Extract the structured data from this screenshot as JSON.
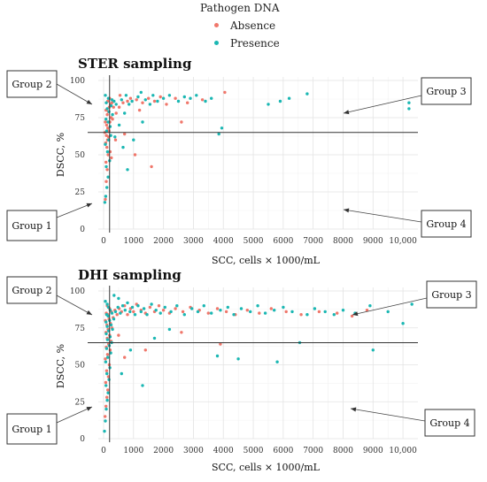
{
  "legend": {
    "title": "Pathogen DNA",
    "items": [
      {
        "label": "Absence",
        "color": "#f0776b"
      },
      {
        "label": "Presence",
        "color": "#1bb7b3"
      }
    ]
  },
  "group_labels": [
    "Group 1",
    "Group 2",
    "Group 3",
    "Group 4"
  ],
  "chart_data": [
    {
      "type": "scatter",
      "title": "STER sampling",
      "xlabel": "SCC, cells × 1000/mL",
      "ylabel": "DSCC, %",
      "xlim": [
        0,
        10500
      ],
      "ylim": [
        0,
        100
      ],
      "xticks": [
        "0",
        "1000",
        "2000",
        "3000",
        "4000",
        "5000",
        "6000",
        "7000",
        "8000",
        "9000",
        "10,000"
      ],
      "yticks": [
        "0",
        "25",
        "50",
        "75",
        "100"
      ],
      "thresholds": {
        "x": 200,
        "y": 65
      },
      "grid": true,
      "legend": "top",
      "series": [
        {
          "name": "Absence",
          "color": "#f0776b",
          "points": [
            [
              60,
              20
            ],
            [
              90,
              32
            ],
            [
              120,
              40
            ],
            [
              80,
              45
            ],
            [
              150,
              50
            ],
            [
              110,
              55
            ],
            [
              70,
              58
            ],
            [
              130,
              60
            ],
            [
              170,
              62
            ],
            [
              95,
              63
            ],
            [
              220,
              52
            ],
            [
              260,
              48
            ],
            [
              180,
              66
            ],
            [
              140,
              68
            ],
            [
              100,
              70
            ],
            [
              210,
              72
            ],
            [
              250,
              75
            ],
            [
              120,
              77
            ],
            [
              160,
              79
            ],
            [
              300,
              74
            ],
            [
              80,
              80
            ],
            [
              190,
              82
            ],
            [
              230,
              84
            ],
            [
              140,
              86
            ],
            [
              60,
              72
            ],
            [
              40,
              65
            ],
            [
              200,
              88
            ],
            [
              280,
              85
            ],
            [
              330,
              82
            ],
            [
              420,
              78
            ],
            [
              520,
              82
            ],
            [
              650,
              85
            ],
            [
              800,
              86
            ],
            [
              900,
              88
            ],
            [
              1100,
              87
            ],
            [
              1300,
              85
            ],
            [
              1500,
              88
            ],
            [
              1700,
              86
            ],
            [
              1900,
              89
            ],
            [
              2100,
              84
            ],
            [
              2400,
              88
            ],
            [
              2800,
              85
            ],
            [
              3300,
              87
            ],
            [
              4050,
              92
            ],
            [
              1600,
              42
            ],
            [
              1050,
              50
            ],
            [
              700,
              64
            ],
            [
              550,
              90
            ],
            [
              1200,
              80
            ],
            [
              2600,
              72
            ],
            [
              400,
              60
            ]
          ]
        },
        {
          "name": "Presence",
          "color": "#1bb7b3",
          "points": [
            [
              40,
              18
            ],
            [
              70,
              22
            ],
            [
              110,
              28
            ],
            [
              150,
              35
            ],
            [
              90,
              42
            ],
            [
              200,
              46
            ],
            [
              130,
              52
            ],
            [
              60,
              57
            ],
            [
              170,
              60
            ],
            [
              240,
              63
            ],
            [
              100,
              66
            ],
            [
              220,
              69
            ],
            [
              150,
              72
            ],
            [
              80,
              74
            ],
            [
              300,
              77
            ],
            [
              180,
              79
            ],
            [
              120,
              81
            ],
            [
              250,
              83
            ],
            [
              90,
              85
            ],
            [
              350,
              86
            ],
            [
              160,
              88
            ],
            [
              60,
              90
            ],
            [
              280,
              87
            ],
            [
              420,
              84
            ],
            [
              600,
              87
            ],
            [
              750,
              90
            ],
            [
              850,
              84
            ],
            [
              950,
              86
            ],
            [
              1150,
              89
            ],
            [
              1250,
              92
            ],
            [
              1400,
              87
            ],
            [
              1550,
              84
            ],
            [
              1650,
              90
            ],
            [
              1800,
              86
            ],
            [
              2000,
              88
            ],
            [
              2200,
              90
            ],
            [
              2500,
              86
            ],
            [
              2700,
              89
            ],
            [
              2900,
              88
            ],
            [
              3100,
              90
            ],
            [
              3400,
              86
            ],
            [
              3600,
              88
            ],
            [
              3850,
              64
            ],
            [
              3950,
              68
            ],
            [
              5500,
              84
            ],
            [
              5900,
              86
            ],
            [
              6200,
              88
            ],
            [
              6800,
              91
            ],
            [
              10200,
              85
            ],
            [
              10200,
              81
            ],
            [
              800,
              40
            ],
            [
              1000,
              60
            ],
            [
              1300,
              72
            ],
            [
              700,
              78
            ],
            [
              520,
              70
            ],
            [
              380,
              62
            ],
            [
              650,
              55
            ]
          ]
        }
      ]
    },
    {
      "type": "scatter",
      "title": "DHI sampling",
      "xlabel": "SCC, cells × 1000/mL",
      "ylabel": "DSCC, %",
      "xlim": [
        0,
        10500
      ],
      "ylim": [
        0,
        100
      ],
      "xticks": [
        "0",
        "1000",
        "2000",
        "3000",
        "4000",
        "5000",
        "6000",
        "7000",
        "8000",
        "9000",
        "10,000"
      ],
      "yticks": [
        "0",
        "25",
        "50",
        "75",
        "100"
      ],
      "thresholds": {
        "x": 200,
        "y": 65
      },
      "grid": true,
      "legend": "top",
      "series": [
        {
          "name": "Absence",
          "color": "#f0776b",
          "points": [
            [
              50,
              15
            ],
            [
              80,
              22
            ],
            [
              110,
              28
            ],
            [
              140,
              33
            ],
            [
              70,
              38
            ],
            [
              160,
              42
            ],
            [
              100,
              46
            ],
            [
              190,
              50
            ],
            [
              60,
              54
            ],
            [
              130,
              57
            ],
            [
              220,
              60
            ],
            [
              90,
              62
            ],
            [
              170,
              64
            ],
            [
              250,
              66
            ],
            [
              120,
              68
            ],
            [
              200,
              70
            ],
            [
              80,
              72
            ],
            [
              150,
              74
            ],
            [
              280,
              75
            ],
            [
              110,
              77
            ],
            [
              230,
              78
            ],
            [
              60,
              80
            ],
            [
              180,
              81
            ],
            [
              320,
              82
            ],
            [
              140,
              84
            ],
            [
              90,
              85
            ],
            [
              260,
              86
            ],
            [
              200,
              88
            ],
            [
              120,
              90
            ],
            [
              380,
              87
            ],
            [
              450,
              84
            ],
            [
              520,
              88
            ],
            [
              600,
              86
            ],
            [
              700,
              90
            ],
            [
              800,
              84
            ],
            [
              900,
              88
            ],
            [
              1000,
              86
            ],
            [
              1100,
              91
            ],
            [
              1250,
              87
            ],
            [
              1400,
              85
            ],
            [
              1550,
              89
            ],
            [
              1700,
              86
            ],
            [
              1850,
              90
            ],
            [
              2000,
              87
            ],
            [
              2200,
              85
            ],
            [
              2400,
              88
            ],
            [
              2650,
              86
            ],
            [
              2900,
              89
            ],
            [
              3200,
              87
            ],
            [
              3500,
              85
            ],
            [
              3800,
              88
            ],
            [
              4100,
              86
            ],
            [
              4400,
              84
            ],
            [
              4800,
              87
            ],
            [
              5200,
              85
            ],
            [
              5600,
              88
            ],
            [
              6100,
              86
            ],
            [
              6600,
              84
            ],
            [
              7200,
              86
            ],
            [
              7800,
              85
            ],
            [
              8300,
              83
            ],
            [
              8800,
              87
            ],
            [
              2600,
              72
            ],
            [
              3900,
              64
            ],
            [
              1400,
              60
            ],
            [
              700,
              55
            ],
            [
              500,
              70
            ]
          ]
        },
        {
          "name": "Presence",
          "color": "#1bb7b3",
          "points": [
            [
              30,
              5
            ],
            [
              60,
              12
            ],
            [
              90,
              20
            ],
            [
              120,
              26
            ],
            [
              150,
              31
            ],
            [
              80,
              36
            ],
            [
              180,
              40
            ],
            [
              110,
              44
            ],
            [
              210,
              48
            ],
            [
              70,
              52
            ],
            [
              140,
              55
            ],
            [
              240,
              58
            ],
            [
              100,
              61
            ],
            [
              190,
              63
            ],
            [
              270,
              65
            ],
            [
              130,
              67
            ],
            [
              220,
              69
            ],
            [
              90,
              71
            ],
            [
              170,
              73
            ],
            [
              300,
              74
            ],
            [
              120,
              76
            ],
            [
              250,
              77
            ],
            [
              80,
              79
            ],
            [
              200,
              80
            ],
            [
              340,
              81
            ],
            [
              150,
              83
            ],
            [
              100,
              84
            ],
            [
              280,
              85
            ],
            [
              220,
              87
            ],
            [
              160,
              89
            ],
            [
              120,
              91
            ],
            [
              60,
              93
            ],
            [
              400,
              86
            ],
            [
              480,
              89
            ],
            [
              560,
              85
            ],
            [
              640,
              90
            ],
            [
              720,
              87
            ],
            [
              800,
              92
            ],
            [
              880,
              86
            ],
            [
              960,
              89
            ],
            [
              1050,
              84
            ],
            [
              1150,
              90
            ],
            [
              1250,
              86
            ],
            [
              1350,
              88
            ],
            [
              1450,
              84
            ],
            [
              1600,
              91
            ],
            [
              1750,
              87
            ],
            [
              1900,
              85
            ],
            [
              2050,
              89
            ],
            [
              2250,
              86
            ],
            [
              2450,
              90
            ],
            [
              2700,
              84
            ],
            [
              2950,
              88
            ],
            [
              3150,
              86
            ],
            [
              3350,
              90
            ],
            [
              3600,
              85
            ],
            [
              3900,
              87
            ],
            [
              4150,
              89
            ],
            [
              4350,
              84
            ],
            [
              4600,
              88
            ],
            [
              4900,
              86
            ],
            [
              5150,
              90
            ],
            [
              5400,
              85
            ],
            [
              5700,
              87
            ],
            [
              6000,
              89
            ],
            [
              6300,
              86
            ],
            [
              6550,
              65
            ],
            [
              6800,
              84
            ],
            [
              7050,
              88
            ],
            [
              7400,
              86
            ],
            [
              7700,
              84
            ],
            [
              8000,
              87
            ],
            [
              8400,
              85
            ],
            [
              8900,
              90
            ],
            [
              9000,
              60
            ],
            [
              9500,
              86
            ],
            [
              10000,
              78
            ],
            [
              10300,
              91
            ],
            [
              1300,
              36
            ],
            [
              2200,
              74
            ],
            [
              3800,
              56
            ],
            [
              4500,
              54
            ],
            [
              5800,
              52
            ],
            [
              600,
              44
            ],
            [
              900,
              60
            ],
            [
              1700,
              68
            ],
            [
              500,
              95
            ],
            [
              350,
              97
            ]
          ]
        }
      ]
    }
  ]
}
